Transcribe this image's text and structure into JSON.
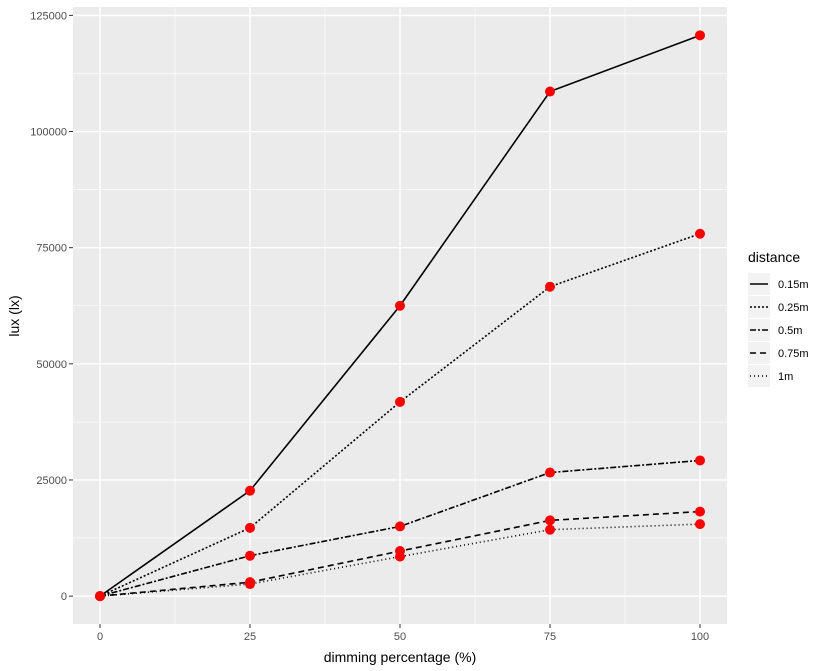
{
  "chart_data": {
    "type": "line",
    "title": "",
    "xlabel": "dimming percentage (%)",
    "ylabel": "lux (lx)",
    "x": [
      0,
      25,
      50,
      75,
      100
    ],
    "xticks": [
      "0",
      "25",
      "50",
      "75",
      "100"
    ],
    "yticks": [
      0,
      25000,
      50000,
      75000,
      100000,
      125000
    ],
    "ytick_labels": [
      "0",
      "25000",
      "50000",
      "75000",
      "100000",
      "125000"
    ],
    "xlim": [
      -4.5,
      104.5
    ],
    "ylim": [
      -6000,
      126800
    ],
    "grid": true,
    "legend": {
      "title": "distance",
      "position": "right"
    },
    "point_color": "#ff0000",
    "line_color": "#000000",
    "panel_background": "#ebebeb",
    "series": [
      {
        "name": "0.15m",
        "linetype": "solid",
        "values": [
          0,
          22700,
          62500,
          108600,
          120700
        ]
      },
      {
        "name": "0.25m",
        "linetype": "dotted",
        "values": [
          0,
          14700,
          41800,
          66600,
          78000
        ]
      },
      {
        "name": "0.5m",
        "linetype": "dashdot",
        "values": [
          0,
          8700,
          15000,
          26600,
          29200
        ]
      },
      {
        "name": "0.75m",
        "linetype": "dashed",
        "values": [
          0,
          3000,
          9700,
          16300,
          18200
        ]
      },
      {
        "name": "1m",
        "linetype": "longdot",
        "values": [
          0,
          2600,
          8500,
          14300,
          15500
        ]
      }
    ]
  }
}
